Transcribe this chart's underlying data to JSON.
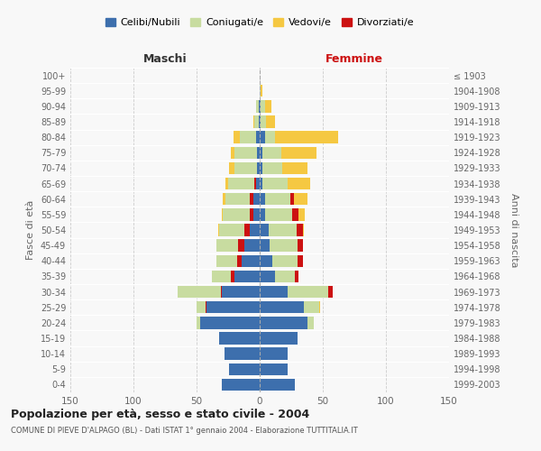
{
  "age_groups": [
    "0-4",
    "5-9",
    "10-14",
    "15-19",
    "20-24",
    "25-29",
    "30-34",
    "35-39",
    "40-44",
    "45-49",
    "50-54",
    "55-59",
    "60-64",
    "65-69",
    "70-74",
    "75-79",
    "80-84",
    "85-89",
    "90-94",
    "95-99",
    "100+"
  ],
  "birth_years": [
    "1999-2003",
    "1994-1998",
    "1989-1993",
    "1984-1988",
    "1979-1983",
    "1974-1978",
    "1969-1973",
    "1964-1968",
    "1959-1963",
    "1954-1958",
    "1949-1953",
    "1944-1948",
    "1939-1943",
    "1934-1938",
    "1929-1933",
    "1924-1928",
    "1919-1923",
    "1914-1918",
    "1909-1913",
    "1904-1908",
    "≤ 1903"
  ],
  "maschi": {
    "celibi": [
      30,
      24,
      28,
      32,
      47,
      42,
      30,
      20,
      14,
      12,
      8,
      5,
      5,
      3,
      2,
      2,
      3,
      1,
      1,
      0,
      0
    ],
    "coniugati": [
      0,
      0,
      0,
      0,
      3,
      8,
      35,
      18,
      20,
      22,
      24,
      24,
      22,
      22,
      18,
      18,
      13,
      3,
      2,
      0,
      0
    ],
    "vedovi": [
      0,
      0,
      0,
      0,
      0,
      0,
      0,
      0,
      0,
      0,
      1,
      1,
      2,
      2,
      4,
      3,
      5,
      1,
      0,
      0,
      0
    ],
    "divorziati": [
      0,
      0,
      0,
      0,
      0,
      1,
      1,
      3,
      4,
      5,
      4,
      3,
      3,
      1,
      0,
      0,
      0,
      0,
      0,
      0,
      0
    ]
  },
  "femmine": {
    "nubili": [
      28,
      22,
      22,
      30,
      38,
      35,
      22,
      12,
      10,
      8,
      7,
      4,
      4,
      2,
      2,
      2,
      4,
      1,
      1,
      0,
      0
    ],
    "coniugate": [
      0,
      0,
      0,
      0,
      5,
      12,
      32,
      16,
      20,
      22,
      22,
      22,
      20,
      20,
      16,
      15,
      8,
      4,
      3,
      1,
      0
    ],
    "vedove": [
      0,
      0,
      0,
      0,
      0,
      1,
      1,
      2,
      3,
      4,
      6,
      10,
      14,
      18,
      20,
      28,
      50,
      7,
      5,
      1,
      0
    ],
    "divorziate": [
      0,
      0,
      0,
      0,
      0,
      0,
      4,
      3,
      4,
      4,
      5,
      5,
      3,
      0,
      0,
      0,
      0,
      0,
      0,
      0,
      0
    ]
  },
  "colors": {
    "celibi_nubili": "#3d6fad",
    "coniugati": "#c8dca0",
    "vedovi": "#f5c842",
    "divorziati": "#cc1111"
  },
  "title": "Popolazione per età, sesso e stato civile - 2004",
  "subtitle": "COMUNE DI PIEVE D'ALPAGO (BL) - Dati ISTAT 1° gennaio 2004 - Elaborazione TUTTITALIA.IT",
  "xlabel_left": "Maschi",
  "xlabel_right": "Femmine",
  "ylabel_left": "Fasce di età",
  "ylabel_right": "Anni di nascita",
  "xlim": 150,
  "legend_labels": [
    "Celibi/Nubili",
    "Coniugati/e",
    "Vedovi/e",
    "Divorziati/e"
  ],
  "background_color": "#f8f8f8",
  "grid_color": "#cccccc"
}
